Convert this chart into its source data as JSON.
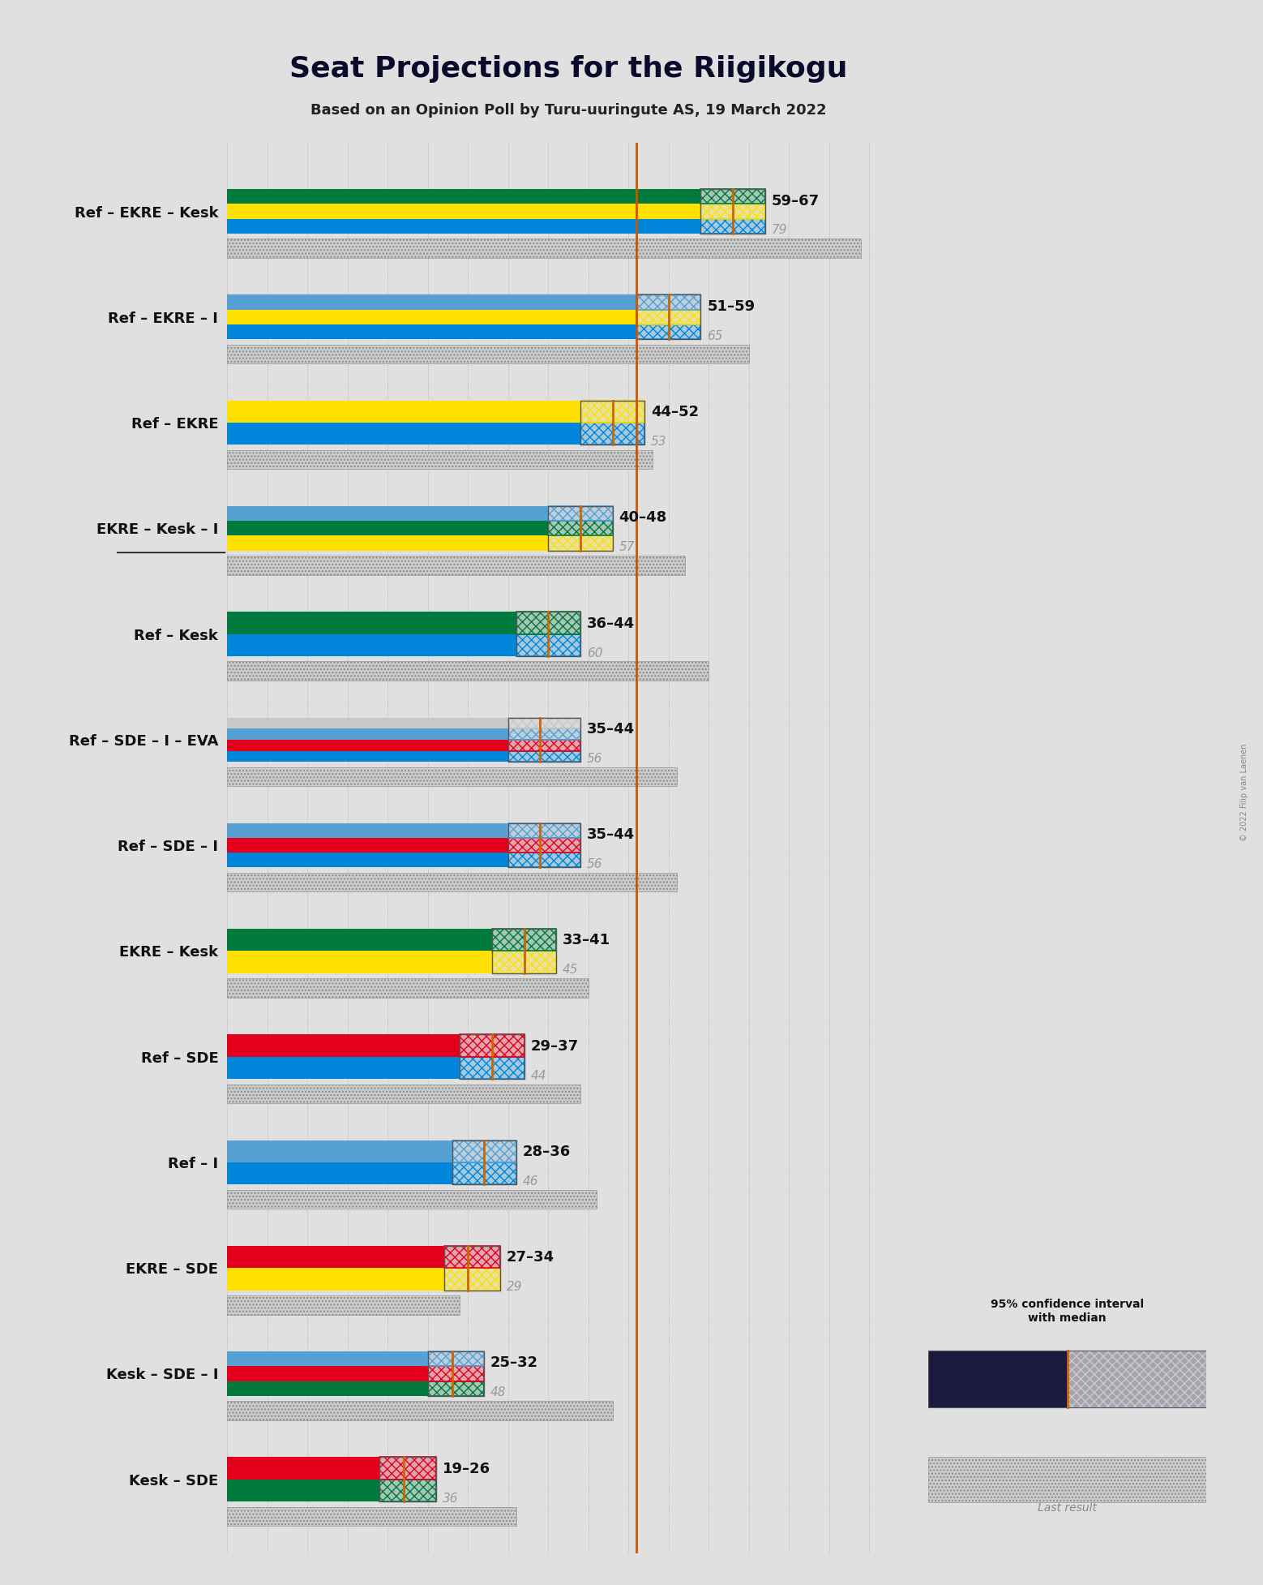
{
  "title": "Seat Projections for the Riigikogu",
  "subtitle": "Based on an Opinion Poll by Turu-uuringute AS, 19 March 2022",
  "copyright": "© 2022 Filip van Laenen",
  "coalitions": [
    {
      "label": "Ref – EKRE – Kesk",
      "underline": false,
      "ci_low": 59,
      "ci_high": 67,
      "median": 63,
      "last": 79,
      "parties": [
        "Ref",
        "EKRE",
        "Kesk"
      ]
    },
    {
      "label": "Ref – EKRE – I",
      "underline": false,
      "ci_low": 51,
      "ci_high": 59,
      "median": 55,
      "last": 65,
      "parties": [
        "Ref",
        "EKRE",
        "I"
      ]
    },
    {
      "label": "Ref – EKRE",
      "underline": false,
      "ci_low": 44,
      "ci_high": 52,
      "median": 48,
      "last": 53,
      "parties": [
        "Ref",
        "EKRE"
      ]
    },
    {
      "label": "EKRE – Kesk – I",
      "underline": true,
      "ci_low": 40,
      "ci_high": 48,
      "median": 44,
      "last": 57,
      "parties": [
        "EKRE",
        "Kesk",
        "I"
      ]
    },
    {
      "label": "Ref – Kesk",
      "underline": false,
      "ci_low": 36,
      "ci_high": 44,
      "median": 40,
      "last": 60,
      "parties": [
        "Ref",
        "Kesk"
      ]
    },
    {
      "label": "Ref – SDE – I – EVA",
      "underline": false,
      "ci_low": 35,
      "ci_high": 44,
      "median": 39,
      "last": 56,
      "parties": [
        "Ref",
        "SDE",
        "I",
        "EVA"
      ]
    },
    {
      "label": "Ref – SDE – I",
      "underline": false,
      "ci_low": 35,
      "ci_high": 44,
      "median": 39,
      "last": 56,
      "parties": [
        "Ref",
        "SDE",
        "I"
      ]
    },
    {
      "label": "EKRE – Kesk",
      "underline": false,
      "ci_low": 33,
      "ci_high": 41,
      "median": 37,
      "last": 45,
      "parties": [
        "EKRE",
        "Kesk"
      ]
    },
    {
      "label": "Ref – SDE",
      "underline": false,
      "ci_low": 29,
      "ci_high": 37,
      "median": 33,
      "last": 44,
      "parties": [
        "Ref",
        "SDE"
      ]
    },
    {
      "label": "Ref – I",
      "underline": false,
      "ci_low": 28,
      "ci_high": 36,
      "median": 32,
      "last": 46,
      "parties": [
        "Ref",
        "I"
      ]
    },
    {
      "label": "EKRE – SDE",
      "underline": false,
      "ci_low": 27,
      "ci_high": 34,
      "median": 30,
      "last": 29,
      "parties": [
        "EKRE",
        "SDE"
      ]
    },
    {
      "label": "Kesk – SDE – I",
      "underline": false,
      "ci_low": 25,
      "ci_high": 32,
      "median": 28,
      "last": 48,
      "parties": [
        "Kesk",
        "SDE",
        "I"
      ]
    },
    {
      "label": "Kesk – SDE",
      "underline": false,
      "ci_low": 19,
      "ci_high": 26,
      "median": 22,
      "last": 36,
      "parties": [
        "Kesk",
        "SDE"
      ]
    }
  ],
  "party_colors": {
    "Ref": "#0087DC",
    "EKRE": "#FFE000",
    "Kesk": "#007A3D",
    "SDE": "#E4001D",
    "I": "#56A0D3",
    "EVA": "#C8C8C8"
  },
  "bg_color": "#E0E0E0",
  "axis_max": 85,
  "median_line_color": "#CC6600",
  "last_color": "#999999",
  "ci_text_color": "#111111",
  "majority_line": 51
}
